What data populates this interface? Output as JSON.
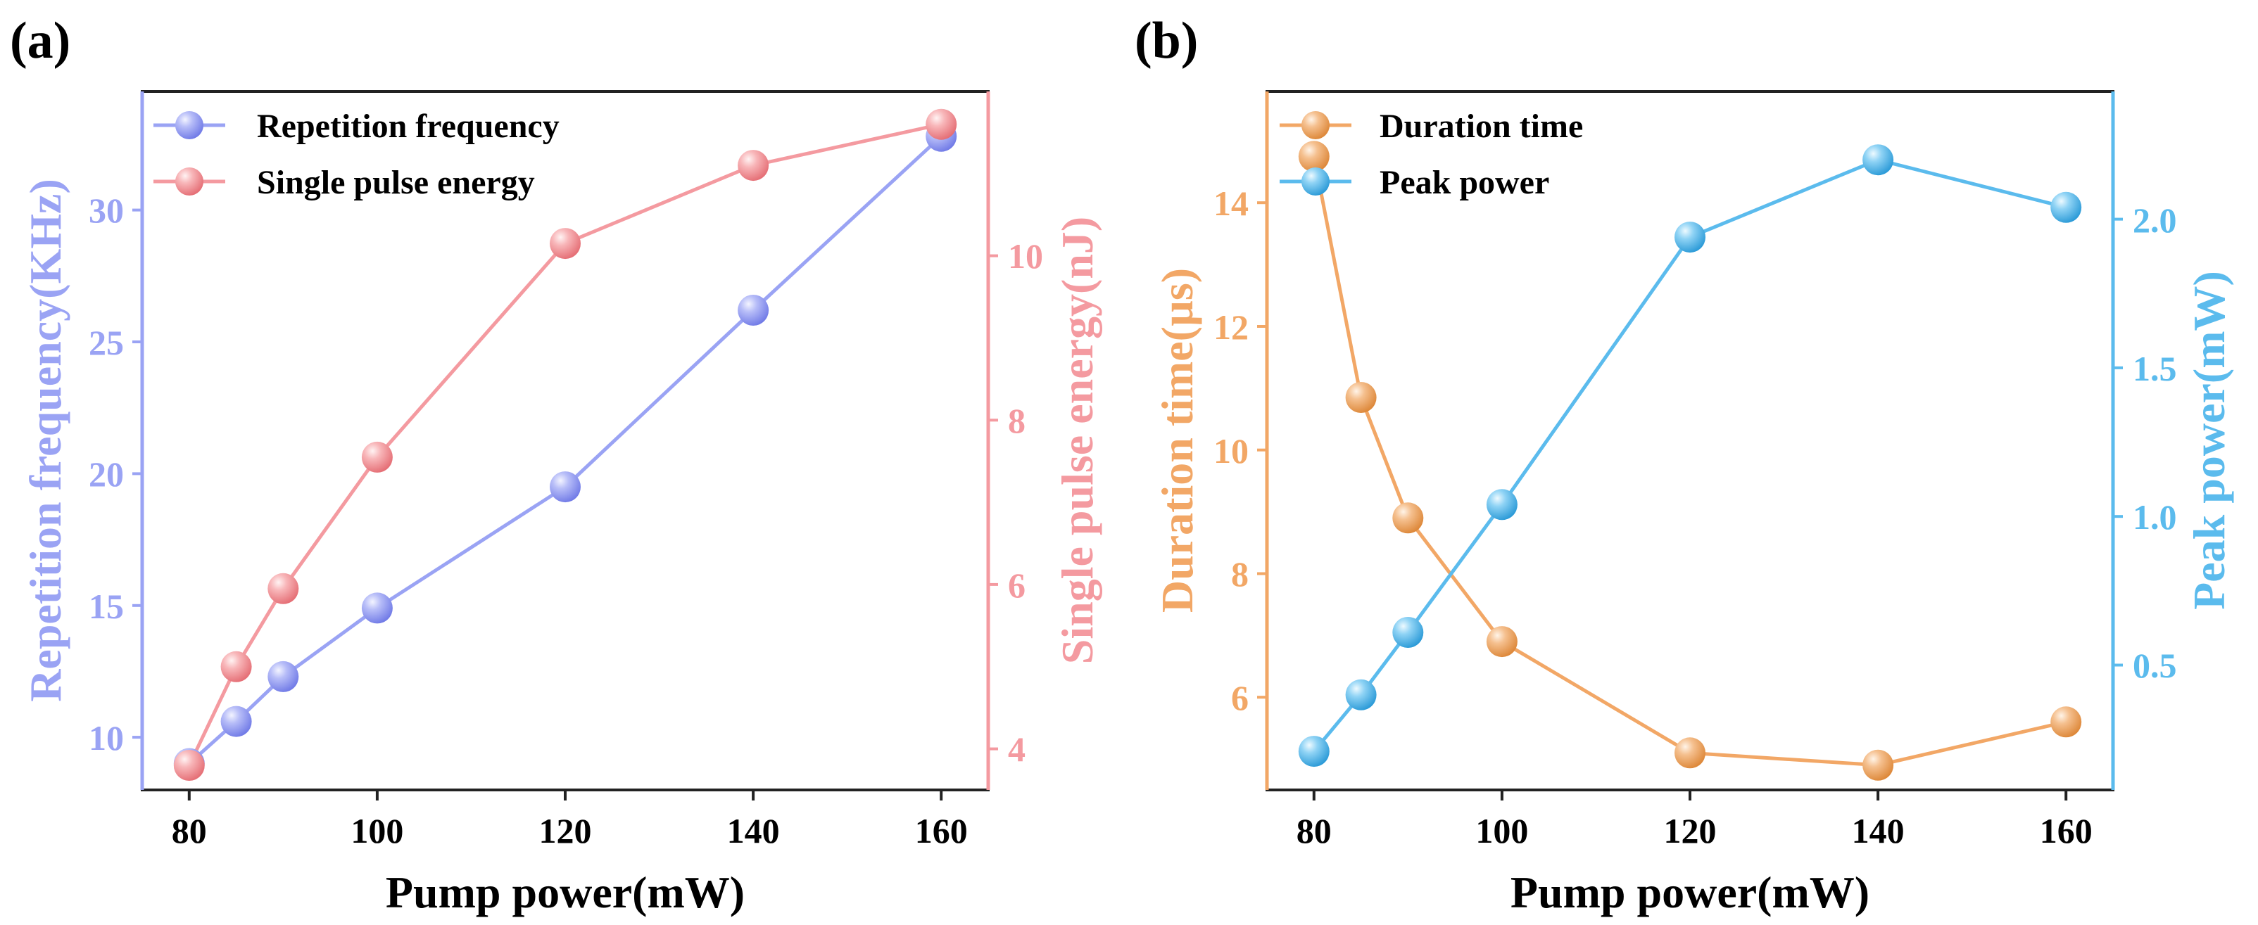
{
  "chart_data": [
    {
      "type": "line",
      "panel_label": "(a)",
      "xlabel": "Pump power(mW)",
      "ylabel_left": "Repetition frequency(KHz)",
      "ylabel_right": "Single pulse energy(nJ)",
      "x": [
        80,
        85,
        90,
        100,
        120,
        140,
        160
      ],
      "xlim": [
        75,
        165
      ],
      "xticks": [
        80,
        100,
        120,
        140,
        160
      ],
      "ylim_left": [
        8.5,
        35
      ],
      "yticks_left": [
        10,
        15,
        20,
        25,
        30
      ],
      "ylim_right": [
        3.5,
        12
      ],
      "yticks_right": [
        4,
        6,
        8,
        10
      ],
      "legend_position": "top-left",
      "series": [
        {
          "name": "Repetition frequency",
          "axis": "left",
          "color": "#9aa3f4",
          "values": [
            9.5,
            11.1,
            12.8,
            15.4,
            20.0,
            26.7,
            33.3
          ]
        },
        {
          "name": "Single pulse energy",
          "axis": "right",
          "color": "#f49aa0",
          "values": [
            3.8,
            5.0,
            5.95,
            7.55,
            10.15,
            11.1,
            11.6
          ]
        }
      ]
    },
    {
      "type": "line",
      "panel_label": "(b)",
      "xlabel": "Pump power(mW)",
      "ylabel_left": "Duration time(µs)",
      "ylabel_right": "Peak power(mW)",
      "x": [
        80,
        85,
        90,
        100,
        120,
        140,
        160
      ],
      "xlim": [
        75,
        165
      ],
      "xticks": [
        80,
        100,
        120,
        140,
        160
      ],
      "ylim_left": [
        4.5,
        15.8
      ],
      "yticks_left": [
        6,
        8,
        10,
        12,
        14
      ],
      "ylim_right": [
        0.13,
        2.48
      ],
      "yticks_right": [
        0.5,
        1.0,
        1.5,
        2.0
      ],
      "legend_position": "top-left",
      "series": [
        {
          "name": "Duration time",
          "axis": "left",
          "color": "#f2a766",
          "values": [
            14.75,
            10.85,
            8.9,
            6.9,
            5.1,
            4.9,
            5.6
          ]
        },
        {
          "name": "Peak power",
          "axis": "right",
          "color": "#5bbbed",
          "values": [
            0.26,
            0.45,
            0.66,
            1.09,
            1.99,
            2.25,
            2.09
          ]
        }
      ]
    }
  ]
}
